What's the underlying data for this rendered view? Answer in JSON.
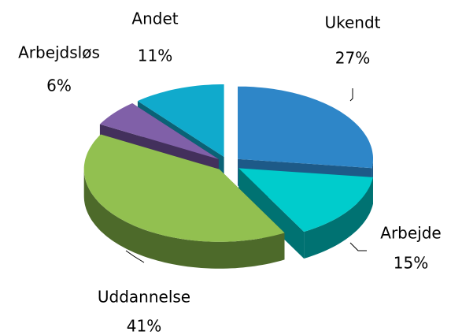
{
  "chart_data": {
    "type": "pie",
    "three_d": true,
    "exploded": true,
    "categories": [
      "Ukendt",
      "Arbejde",
      "Uddannelse",
      "Arbejdsløs",
      "Andet"
    ],
    "values": [
      27,
      15,
      41,
      6,
      11
    ],
    "value_labels": [
      "27%",
      "15%",
      "41%",
      "6%",
      "11%"
    ],
    "colors": [
      "#2e86c8",
      "#00cccc",
      "#92c050",
      "#8060a8",
      "#10aacc"
    ],
    "side_colors": [
      "#1d5a88",
      "#007272",
      "#4d6a2a",
      "#43305c",
      "#0a6276"
    ]
  }
}
